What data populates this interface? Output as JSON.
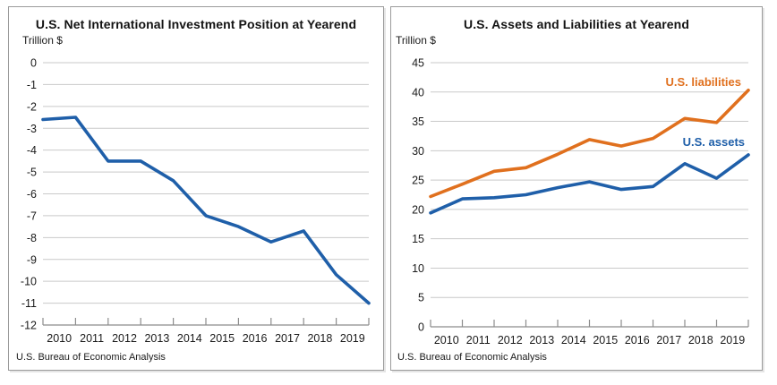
{
  "source_note": "U.S. Bureau of Economic Analysis",
  "colors": {
    "net_position_line": "#1f5fa9",
    "assets_line": "#1f5fa9",
    "liabilities_line": "#e0701e"
  },
  "chart_data": [
    {
      "type": "line",
      "title": "U.S. Net International Investment Position at Yearend",
      "ylabel": "Trillion $",
      "ylim": [
        -12,
        0
      ],
      "ytick_step": 1,
      "grid": true,
      "legend_position": "none",
      "x_tick_labels": [
        "2010",
        "2011",
        "2012",
        "2013",
        "2014",
        "2015",
        "2016",
        "2017",
        "2018",
        "2019"
      ],
      "series": [
        {
          "name": "U.S. net international investment position",
          "color": "#1f5fa9",
          "x": [
            2009,
            2010,
            2011,
            2012,
            2013,
            2014,
            2015,
            2016,
            2017,
            2018,
            2019
          ],
          "values": [
            -2.6,
            -2.5,
            -4.5,
            -4.5,
            -5.4,
            -7.0,
            -7.5,
            -8.2,
            -7.7,
            -9.7,
            -11.0
          ]
        }
      ],
      "source": "U.S. Bureau of Economic Analysis"
    },
    {
      "type": "line",
      "title": "U.S. Assets and Liabilities at Yearend",
      "ylabel": "Trillion $",
      "ylim": [
        0,
        45
      ],
      "ytick_step": 5,
      "grid": true,
      "legend_position": "inline-right",
      "x_tick_labels": [
        "2010",
        "2011",
        "2012",
        "2013",
        "2014",
        "2015",
        "2016",
        "2017",
        "2018",
        "2019"
      ],
      "series": [
        {
          "name": "U.S. liabilities",
          "color": "#e0701e",
          "x": [
            2009,
            2010,
            2011,
            2012,
            2013,
            2014,
            2015,
            2016,
            2017,
            2018,
            2019
          ],
          "values": [
            22.2,
            24.3,
            26.5,
            27.1,
            29.4,
            31.9,
            30.8,
            32.1,
            35.5,
            34.8,
            40.3
          ]
        },
        {
          "name": "U.S. assets",
          "color": "#1f5fa9",
          "x": [
            2009,
            2010,
            2011,
            2012,
            2013,
            2014,
            2015,
            2016,
            2017,
            2018,
            2019
          ],
          "values": [
            19.4,
            21.8,
            22.0,
            22.5,
            23.7,
            24.7,
            23.4,
            23.9,
            27.8,
            25.3,
            29.3
          ]
        }
      ],
      "annotations": [
        {
          "text": "U.S. liabilities",
          "color": "#e0701e"
        },
        {
          "text": "U.S. assets",
          "color": "#1f5fa9"
        }
      ],
      "source": "U.S. Bureau of Economic Analysis"
    }
  ]
}
